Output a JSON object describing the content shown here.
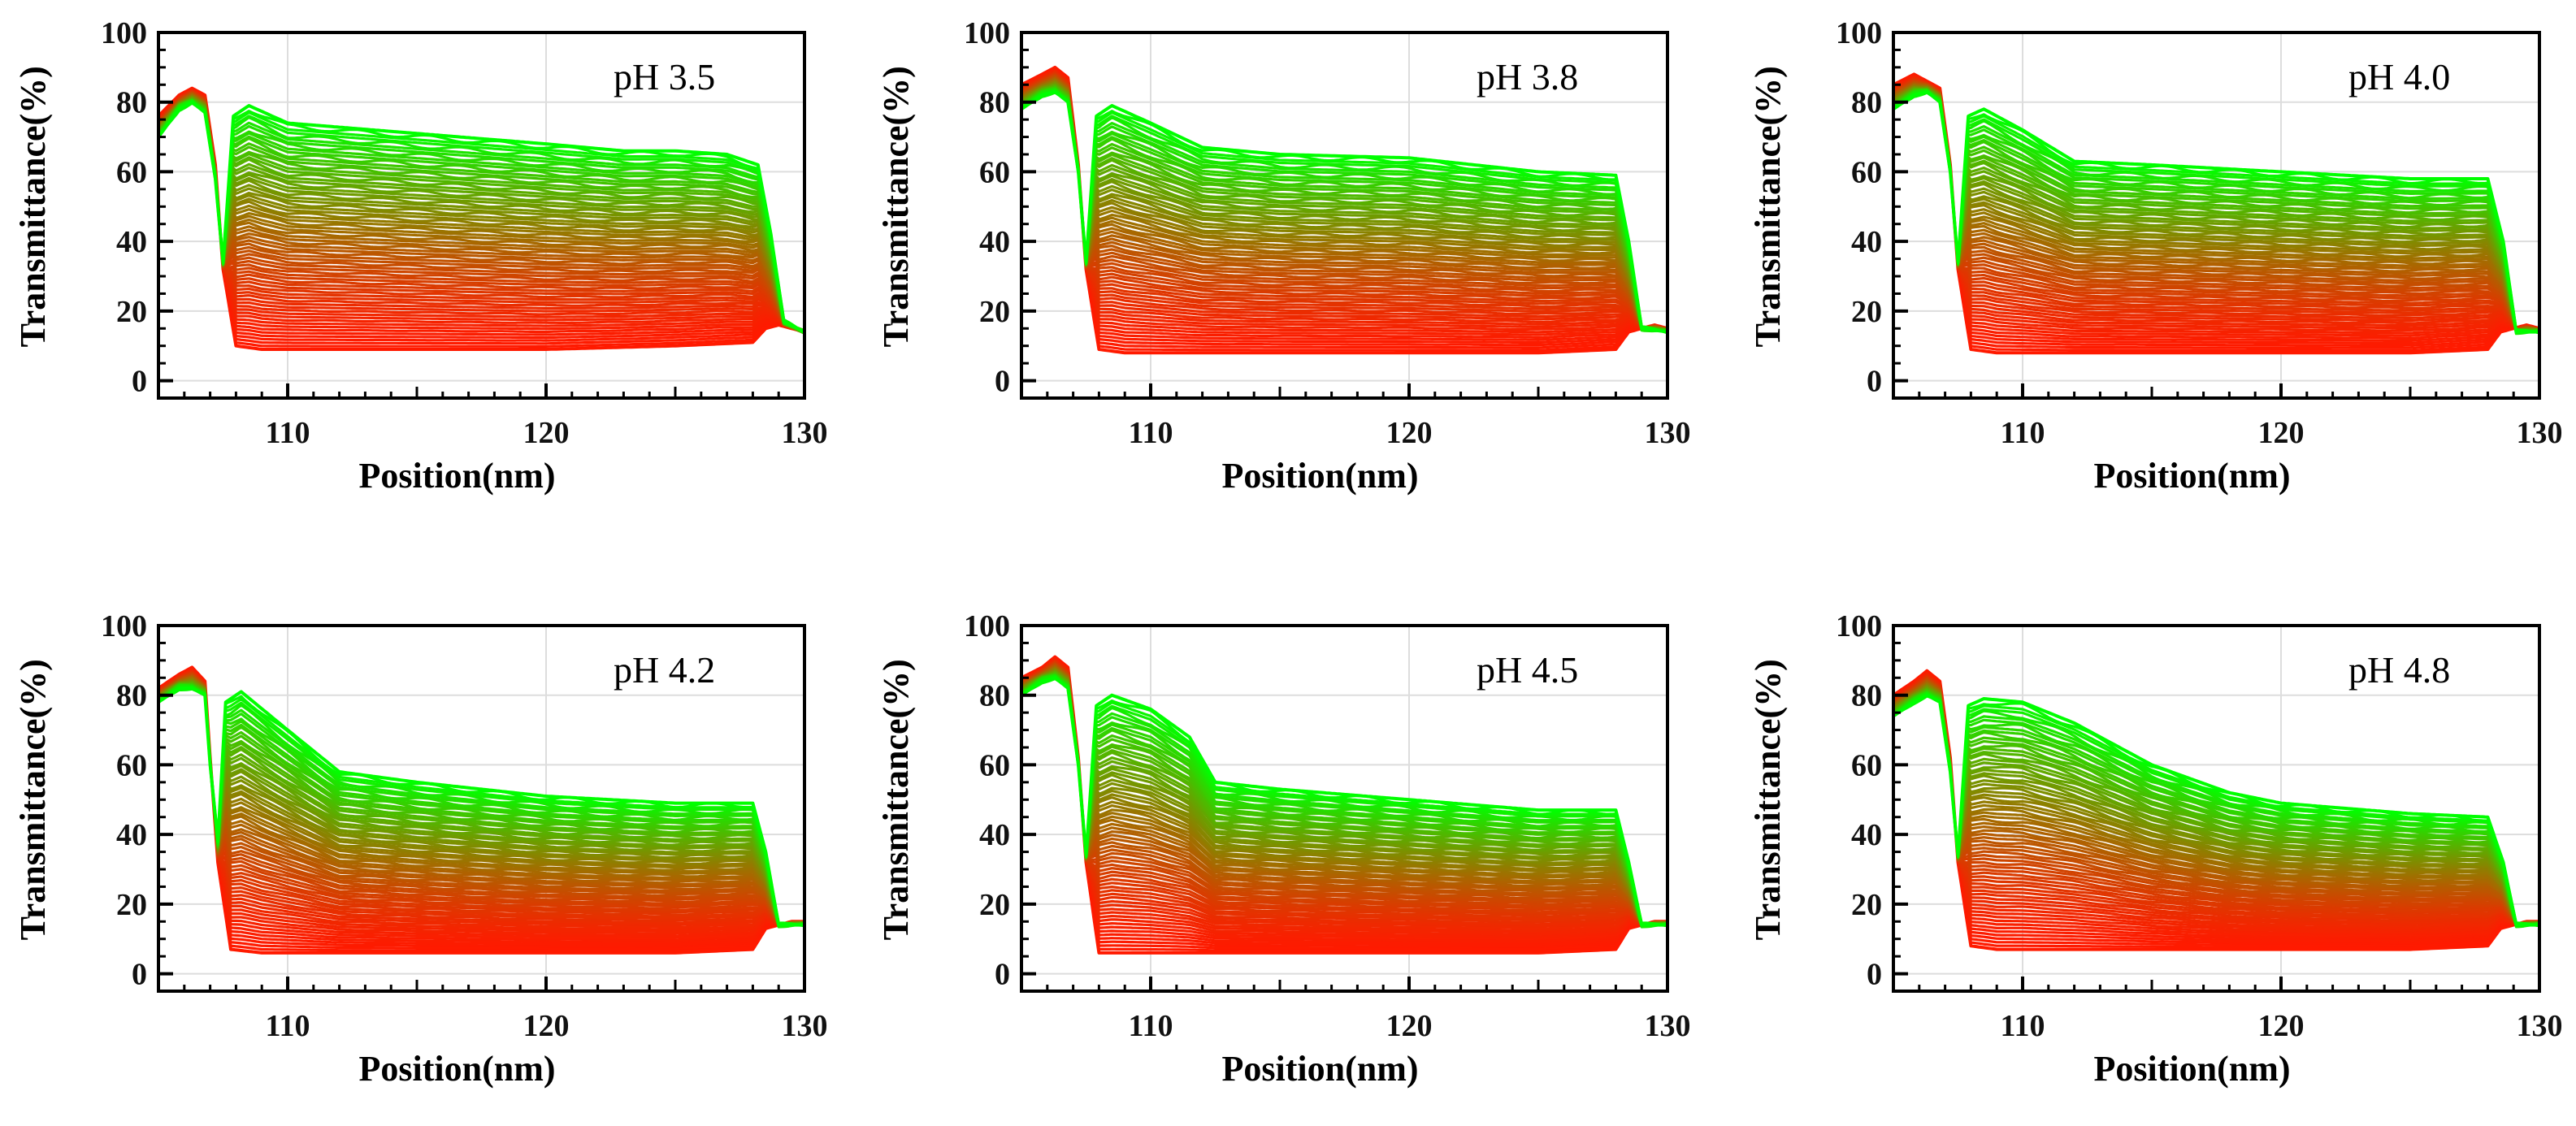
{
  "figure": {
    "panel_count": 6,
    "colors": {
      "early_curve": "#ff1a00",
      "late_curve": "#00ff00",
      "axis": "#000000",
      "grid": "#dddddd",
      "background": "#ffffff"
    }
  },
  "chart_data": [
    {
      "type": "line",
      "title": "pH 3.5",
      "xlabel": "Position(nm)",
      "ylabel": "Transmittance(%)",
      "xlim": [
        105,
        130
      ],
      "ylim": [
        -5,
        100
      ],
      "x_ticks": [
        110,
        120,
        130
      ],
      "y_ticks": [
        0,
        20,
        40,
        60,
        80,
        100
      ],
      "grid": true,
      "series_description": "Stack of transmittance profiles over time, shading from red (early) to green (late)",
      "series": [
        {
          "name": "earliest profile",
          "color": "#ff1a00",
          "x": [
            105,
            105.8,
            106.3,
            106.8,
            107.2,
            107.5,
            108,
            109,
            110,
            115,
            120,
            125,
            128,
            128.5,
            129,
            129.5,
            130
          ],
          "y": [
            76,
            82,
            84,
            82,
            62,
            32,
            10,
            9,
            9,
            9,
            9,
            10,
            11,
            15,
            16,
            15,
            14
          ]
        },
        {
          "name": "latest profile",
          "color": "#00ff00",
          "x": [
            105,
            105.8,
            106.3,
            106.8,
            107.2,
            107.5,
            107.9,
            108.5,
            110,
            115,
            120,
            123,
            125,
            127,
            128.2,
            128.7,
            129.2,
            130
          ],
          "y": [
            70,
            78,
            80,
            77,
            58,
            34,
            76,
            79,
            74,
            71,
            68,
            66,
            66,
            65,
            62,
            42,
            17,
            14
          ]
        }
      ]
    },
    {
      "type": "line",
      "title": "pH 3.8",
      "xlabel": "Position(nm)",
      "ylabel": "Transmittance(%)",
      "xlim": [
        105,
        130
      ],
      "ylim": [
        -5,
        100
      ],
      "x_ticks": [
        110,
        120,
        130
      ],
      "y_ticks": [
        0,
        20,
        40,
        60,
        80,
        100
      ],
      "grid": true,
      "series_description": "Stack of transmittance profiles over time, shading from red (early) to green (late)",
      "series": [
        {
          "name": "earliest profile",
          "color": "#ff1a00",
          "x": [
            105,
            105.8,
            106.3,
            106.8,
            107.2,
            107.5,
            108,
            109,
            110,
            115,
            120,
            125,
            128,
            128.5,
            129,
            129.5,
            130
          ],
          "y": [
            85,
            88,
            90,
            87,
            62,
            32,
            9,
            8,
            8,
            8,
            8,
            8,
            9,
            14,
            15,
            16,
            15
          ]
        },
        {
          "name": "latest profile",
          "color": "#00ff00",
          "x": [
            105,
            105.8,
            106.3,
            106.8,
            107.2,
            107.5,
            107.9,
            108.5,
            110,
            112,
            115,
            120,
            125,
            128,
            128.5,
            129,
            130
          ],
          "y": [
            78,
            82,
            83,
            80,
            60,
            34,
            76,
            79,
            74,
            67,
            65,
            64,
            60,
            59,
            40,
            15,
            14
          ]
        }
      ]
    },
    {
      "type": "line",
      "title": "pH 4.0",
      "xlabel": "Position(nm)",
      "ylabel": "Transmittance(%)",
      "xlim": [
        105,
        130
      ],
      "ylim": [
        -5,
        100
      ],
      "x_ticks": [
        110,
        120,
        130
      ],
      "y_ticks": [
        0,
        20,
        40,
        60,
        80,
        100
      ],
      "grid": true,
      "series_description": "Stack of transmittance profiles over time, shading from red (early) to green (late)",
      "series": [
        {
          "name": "earliest profile",
          "color": "#ff1a00",
          "x": [
            105,
            105.8,
            106.3,
            106.8,
            107.2,
            107.5,
            108,
            109,
            110,
            115,
            120,
            125,
            128,
            128.5,
            129,
            129.5,
            130
          ],
          "y": [
            85,
            88,
            86,
            84,
            62,
            32,
            9,
            8,
            8,
            8,
            8,
            8,
            9,
            14,
            15,
            16,
            15
          ]
        },
        {
          "name": "latest profile",
          "color": "#00ff00",
          "x": [
            105,
            105.8,
            106.3,
            106.8,
            107.2,
            107.5,
            107.9,
            108.5,
            110,
            112,
            115,
            120,
            125,
            128,
            128.6,
            129.1,
            130
          ],
          "y": [
            78,
            82,
            83,
            80,
            60,
            34,
            76,
            78,
            72,
            63,
            62,
            60,
            58,
            58,
            40,
            14,
            14
          ]
        }
      ]
    },
    {
      "type": "line",
      "title": "pH 4.2",
      "xlabel": "Position(nm)",
      "ylabel": "Transmittance(%)",
      "xlim": [
        105,
        130
      ],
      "ylim": [
        -5,
        100
      ],
      "x_ticks": [
        110,
        120,
        130
      ],
      "y_ticks": [
        0,
        20,
        40,
        60,
        80,
        100
      ],
      "grid": true,
      "series_description": "Stack of transmittance profiles over time, shading from red (early) to green (late)",
      "series": [
        {
          "name": "earliest profile",
          "color": "#ff1a00",
          "x": [
            105,
            105.8,
            106.3,
            106.8,
            107.0,
            107.3,
            107.8,
            109,
            110,
            115,
            120,
            125,
            128,
            128.5,
            129,
            129.5,
            130
          ],
          "y": [
            82,
            86,
            88,
            84,
            62,
            32,
            7,
            6,
            6,
            6,
            6,
            6,
            7,
            13,
            14,
            15,
            15
          ]
        },
        {
          "name": "latest profile",
          "color": "#00ff00",
          "x": [
            105,
            105.8,
            106.3,
            106.8,
            107.0,
            107.3,
            107.6,
            108.2,
            110,
            112,
            115,
            120,
            125,
            128,
            128.5,
            129,
            130
          ],
          "y": [
            78,
            82,
            82,
            80,
            60,
            38,
            78,
            81,
            70,
            58,
            55,
            51,
            49,
            49,
            35,
            14,
            14
          ]
        }
      ]
    },
    {
      "type": "line",
      "title": "pH 4.5",
      "xlabel": "Position(nm)",
      "ylabel": "Transmittance(%)",
      "xlim": [
        105,
        130
      ],
      "ylim": [
        -5,
        100
      ],
      "x_ticks": [
        110,
        120,
        130
      ],
      "y_ticks": [
        0,
        20,
        40,
        60,
        80,
        100
      ],
      "grid": true,
      "series_description": "Stack of transmittance profiles over time, shading from red (early) to green (late)",
      "series": [
        {
          "name": "earliest profile",
          "color": "#ff1a00",
          "x": [
            105,
            105.8,
            106.3,
            106.8,
            107.2,
            107.5,
            108,
            109,
            110,
            115,
            120,
            125,
            128,
            128.5,
            129,
            129.5,
            130
          ],
          "y": [
            85,
            88,
            91,
            88,
            62,
            32,
            6,
            6,
            6,
            6,
            6,
            6,
            7,
            13,
            14,
            15,
            15
          ]
        },
        {
          "name": "latest profile",
          "color": "#00ff00",
          "x": [
            105,
            105.8,
            106.3,
            106.8,
            107.2,
            107.5,
            107.9,
            108.5,
            110,
            111.5,
            112.5,
            115,
            120,
            125,
            128,
            128.5,
            129,
            130
          ],
          "y": [
            80,
            84,
            85,
            82,
            60,
            34,
            77,
            80,
            76,
            68,
            55,
            53,
            50,
            47,
            47,
            32,
            14,
            14
          ]
        }
      ]
    },
    {
      "type": "line",
      "title": "pH 4.8",
      "xlabel": "Position(nm)",
      "ylabel": "Transmittance(%)",
      "xlim": [
        105,
        130
      ],
      "ylim": [
        -5,
        100
      ],
      "x_ticks": [
        110,
        120,
        130
      ],
      "y_ticks": [
        0,
        20,
        40,
        60,
        80,
        100
      ],
      "grid": true,
      "series_description": "Stack of transmittance profiles over time, shading from red (early) to green (late)",
      "series": [
        {
          "name": "earliest profile",
          "color": "#ff1a00",
          "x": [
            105,
            105.8,
            106.3,
            106.8,
            107.2,
            107.5,
            108,
            109,
            110,
            115,
            120,
            125,
            128,
            128.5,
            129,
            129.5,
            130
          ],
          "y": [
            80,
            84,
            87,
            84,
            62,
            32,
            8,
            7,
            7,
            7,
            7,
            7,
            8,
            13,
            14,
            15,
            15
          ]
        },
        {
          "name": "latest profile",
          "color": "#00ff00",
          "x": [
            105,
            105.8,
            106.3,
            106.8,
            107.2,
            107.5,
            107.9,
            108.5,
            110,
            112,
            115,
            118,
            120,
            125,
            128,
            128.6,
            129.1,
            130
          ],
          "y": [
            74,
            78,
            80,
            78,
            58,
            34,
            77,
            79,
            78,
            72,
            60,
            52,
            49,
            46,
            45,
            32,
            14,
            14
          ]
        }
      ]
    }
  ]
}
